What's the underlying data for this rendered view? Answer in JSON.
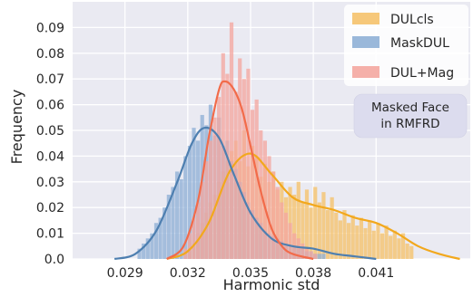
{
  "chart_data": {
    "type": "histogram+kde",
    "xlabel": "Harmonic  std",
    "ylabel": "Frequency",
    "xlim": [
      0.0265,
      0.0455
    ],
    "ylim": [
      0,
      0.1
    ],
    "x_ticks": [
      "0.029",
      "0.032",
      "0.035",
      "0.038",
      "0.041"
    ],
    "x_tick_values": [
      0.029,
      0.032,
      0.035,
      0.038,
      0.041
    ],
    "y_ticks": [
      "0.0",
      "0.01",
      "0.02",
      "0.03",
      "0.04",
      "0.05",
      "0.06",
      "0.07",
      "0.08",
      "0.09"
    ],
    "y_tick_values": [
      0,
      0.01,
      0.02,
      0.03,
      0.04,
      0.05,
      0.06,
      0.07,
      0.08,
      0.09
    ],
    "grid": true,
    "background": "#eaeaf2",
    "legend_position": "top-right",
    "annotation": [
      "Masked Face",
      "in RMFRD"
    ],
    "bin_width": 0.0002,
    "series": [
      {
        "name": "DULcls",
        "fill": "#f5c26b",
        "line": "#f2a81d",
        "bins": [
          [
            0.032,
            0.003
          ],
          [
            0.0322,
            0.006
          ],
          [
            0.0324,
            0.01
          ],
          [
            0.0326,
            0.014
          ],
          [
            0.0328,
            0.018
          ],
          [
            0.033,
            0.022
          ],
          [
            0.0332,
            0.025
          ],
          [
            0.0334,
            0.03
          ],
          [
            0.0336,
            0.034
          ],
          [
            0.0338,
            0.038
          ],
          [
            0.034,
            0.042
          ],
          [
            0.0342,
            0.046
          ],
          [
            0.0344,
            0.038
          ],
          [
            0.0346,
            0.05
          ],
          [
            0.0348,
            0.036
          ],
          [
            0.035,
            0.044
          ],
          [
            0.0352,
            0.04
          ],
          [
            0.0354,
            0.032
          ],
          [
            0.0356,
            0.037
          ],
          [
            0.0358,
            0.03
          ],
          [
            0.036,
            0.034
          ],
          [
            0.0362,
            0.027
          ],
          [
            0.0364,
            0.03
          ],
          [
            0.0366,
            0.024
          ],
          [
            0.0368,
            0.028
          ],
          [
            0.037,
            0.025
          ],
          [
            0.0372,
            0.03
          ],
          [
            0.0374,
            0.022
          ],
          [
            0.0376,
            0.027
          ],
          [
            0.0378,
            0.02
          ],
          [
            0.038,
            0.028
          ],
          [
            0.0382,
            0.022
          ],
          [
            0.0384,
            0.026
          ],
          [
            0.0386,
            0.019
          ],
          [
            0.0388,
            0.024
          ],
          [
            0.039,
            0.018
          ],
          [
            0.0392,
            0.015
          ],
          [
            0.0394,
            0.019
          ],
          [
            0.0396,
            0.014
          ],
          [
            0.0398,
            0.017
          ],
          [
            0.04,
            0.013
          ],
          [
            0.0402,
            0.016
          ],
          [
            0.0404,
            0.012
          ],
          [
            0.0406,
            0.015
          ],
          [
            0.0408,
            0.011
          ],
          [
            0.041,
            0.014
          ],
          [
            0.0412,
            0.01
          ],
          [
            0.0414,
            0.013
          ],
          [
            0.0416,
            0.009
          ],
          [
            0.0418,
            0.011
          ],
          [
            0.042,
            0.008
          ],
          [
            0.0422,
            0.01
          ],
          [
            0.0424,
            0.006
          ],
          [
            0.0426,
            0.005
          ]
        ],
        "kde": [
          [
            0.031,
            0.0
          ],
          [
            0.032,
            0.003
          ],
          [
            0.033,
            0.014
          ],
          [
            0.034,
            0.034
          ],
          [
            0.035,
            0.041
          ],
          [
            0.036,
            0.033
          ],
          [
            0.037,
            0.024
          ],
          [
            0.038,
            0.021
          ],
          [
            0.039,
            0.019
          ],
          [
            0.04,
            0.016
          ],
          [
            0.041,
            0.014
          ],
          [
            0.042,
            0.01
          ],
          [
            0.043,
            0.005
          ],
          [
            0.044,
            0.002
          ],
          [
            0.045,
            0.0
          ]
        ]
      },
      {
        "name": "MaskDUL",
        "fill": "#8fb0d6",
        "line": "#4e7fb0",
        "bins": [
          [
            0.0296,
            0.004
          ],
          [
            0.0298,
            0.006
          ],
          [
            0.03,
            0.008
          ],
          [
            0.0302,
            0.01
          ],
          [
            0.0304,
            0.014
          ],
          [
            0.0306,
            0.016
          ],
          [
            0.0308,
            0.02
          ],
          [
            0.031,
            0.025
          ],
          [
            0.0312,
            0.028
          ],
          [
            0.0314,
            0.034
          ],
          [
            0.0316,
            0.031
          ],
          [
            0.0318,
            0.04
          ],
          [
            0.032,
            0.044
          ],
          [
            0.0322,
            0.051
          ],
          [
            0.0324,
            0.046
          ],
          [
            0.0326,
            0.056
          ],
          [
            0.0328,
            0.052
          ],
          [
            0.033,
            0.06
          ],
          [
            0.0332,
            0.048
          ],
          [
            0.0334,
            0.055
          ],
          [
            0.0336,
            0.044
          ],
          [
            0.0338,
            0.046
          ],
          [
            0.034,
            0.038
          ],
          [
            0.0342,
            0.035
          ],
          [
            0.0344,
            0.03
          ],
          [
            0.0346,
            0.026
          ],
          [
            0.0348,
            0.022
          ],
          [
            0.035,
            0.019
          ],
          [
            0.0352,
            0.016
          ],
          [
            0.0354,
            0.014
          ],
          [
            0.0356,
            0.011
          ],
          [
            0.0358,
            0.01
          ],
          [
            0.036,
            0.009
          ],
          [
            0.0362,
            0.008
          ],
          [
            0.0364,
            0.007
          ],
          [
            0.0366,
            0.006
          ],
          [
            0.0368,
            0.005
          ],
          [
            0.037,
            0.005
          ],
          [
            0.0372,
            0.004
          ],
          [
            0.0374,
            0.004
          ],
          [
            0.0376,
            0.003
          ],
          [
            0.0378,
            0.003
          ],
          [
            0.038,
            0.002
          ],
          [
            0.0382,
            0.002
          ],
          [
            0.0384,
            0.002
          ]
        ],
        "kde": [
          [
            0.0285,
            0.0
          ],
          [
            0.0295,
            0.002
          ],
          [
            0.0305,
            0.011
          ],
          [
            0.0315,
            0.03
          ],
          [
            0.0322,
            0.045
          ],
          [
            0.0328,
            0.051
          ],
          [
            0.0335,
            0.047
          ],
          [
            0.0342,
            0.033
          ],
          [
            0.035,
            0.018
          ],
          [
            0.036,
            0.008
          ],
          [
            0.037,
            0.005
          ],
          [
            0.038,
            0.004
          ],
          [
            0.039,
            0.002
          ],
          [
            0.04,
            0.001
          ],
          [
            0.041,
            0.0
          ]
        ]
      },
      {
        "name": "DUL+Mag",
        "fill": "#f4a7a0",
        "line": "#f26b4a",
        "bins": [
          [
            0.0318,
            0.004
          ],
          [
            0.032,
            0.01
          ],
          [
            0.0322,
            0.016
          ],
          [
            0.0324,
            0.022
          ],
          [
            0.0326,
            0.03
          ],
          [
            0.0328,
            0.038
          ],
          [
            0.033,
            0.046
          ],
          [
            0.0332,
            0.055
          ],
          [
            0.0334,
            0.063
          ],
          [
            0.0336,
            0.08
          ],
          [
            0.0338,
            0.072
          ],
          [
            0.034,
            0.092
          ],
          [
            0.0342,
            0.065
          ],
          [
            0.0344,
            0.078
          ],
          [
            0.0346,
            0.07
          ],
          [
            0.0348,
            0.074
          ],
          [
            0.035,
            0.058
          ],
          [
            0.0352,
            0.062
          ],
          [
            0.0354,
            0.05
          ],
          [
            0.0356,
            0.046
          ],
          [
            0.0358,
            0.04
          ],
          [
            0.036,
            0.034
          ],
          [
            0.0362,
            0.028
          ],
          [
            0.0364,
            0.022
          ],
          [
            0.0366,
            0.018
          ],
          [
            0.0368,
            0.014
          ],
          [
            0.037,
            0.01
          ],
          [
            0.0372,
            0.008
          ],
          [
            0.0374,
            0.006
          ],
          [
            0.0376,
            0.004
          ],
          [
            0.0378,
            0.003
          ],
          [
            0.038,
            0.002
          ]
        ],
        "kde": [
          [
            0.031,
            0.0
          ],
          [
            0.0318,
            0.005
          ],
          [
            0.0325,
            0.023
          ],
          [
            0.033,
            0.047
          ],
          [
            0.0335,
            0.066
          ],
          [
            0.0338,
            0.069
          ],
          [
            0.0342,
            0.066
          ],
          [
            0.0346,
            0.058
          ],
          [
            0.035,
            0.044
          ],
          [
            0.0355,
            0.026
          ],
          [
            0.036,
            0.012
          ],
          [
            0.0365,
            0.005
          ],
          [
            0.037,
            0.002
          ],
          [
            0.038,
            0.0
          ]
        ]
      }
    ]
  }
}
